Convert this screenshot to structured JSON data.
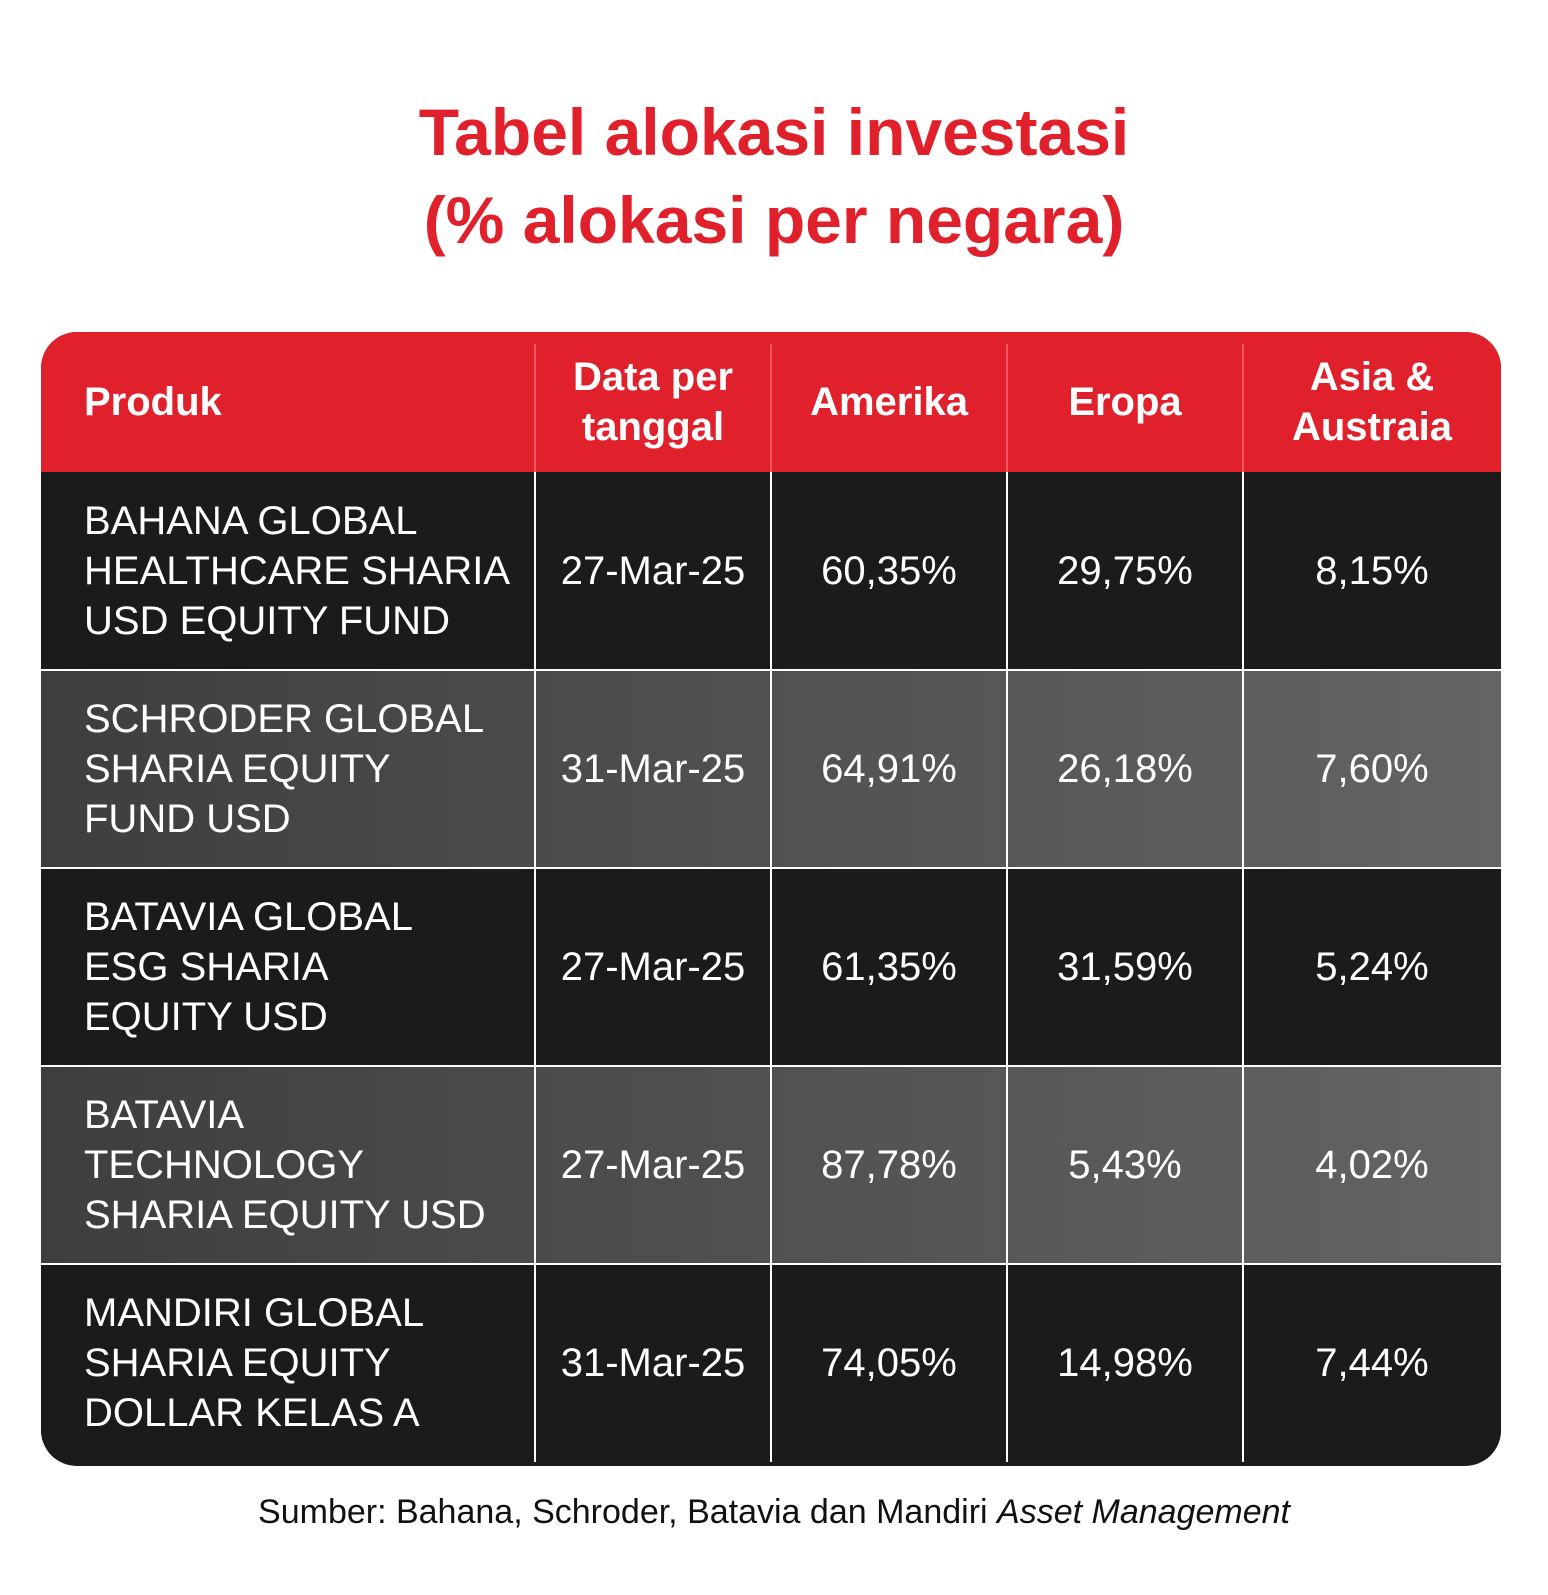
{
  "title_line1": "Tabel alokasi investasi",
  "title_line2": "(% alokasi per negara)",
  "chart_data": {
    "type": "table",
    "columns": [
      "Produk",
      "Data per tanggal",
      "Amerika",
      "Eropa",
      "Asia & Austraia"
    ],
    "header": {
      "produk": "Produk",
      "tanggal_line1": "Data per",
      "tanggal_line2": "tanggal",
      "amerika": "Amerika",
      "eropa": "Eropa",
      "asia_line1": "Asia &",
      "asia_line2": "Austraia"
    },
    "rows": [
      {
        "produk": [
          "BAHANA GLOBAL",
          "HEALTHCARE SHARIA",
          "USD EQUITY FUND"
        ],
        "tanggal": "27-Mar-25",
        "amerika": "60,35%",
        "eropa": "29,75%",
        "asia": "8,15%"
      },
      {
        "produk": [
          "SCHRODER GLOBAL",
          "SHARIA EQUITY",
          "FUND USD"
        ],
        "tanggal": "31-Mar-25",
        "amerika": "64,91%",
        "eropa": "26,18%",
        "asia": "7,60%"
      },
      {
        "produk": [
          "BATAVIA GLOBAL",
          "ESG SHARIA",
          "EQUITY USD"
        ],
        "tanggal": "27-Mar-25",
        "amerika": "61,35%",
        "eropa": "31,59%",
        "asia": "5,24%"
      },
      {
        "produk": [
          "BATAVIA",
          "TECHNOLOGY",
          "SHARIA EQUITY USD"
        ],
        "tanggal": "27-Mar-25",
        "amerika": "87,78%",
        "eropa": "5,43%",
        "asia": "4,02%"
      },
      {
        "produk": [
          "MANDIRI GLOBAL",
          "SHARIA EQUITY",
          "DOLLAR KELAS A"
        ],
        "tanggal": "31-Mar-25",
        "amerika": "74,05%",
        "eropa": "14,98%",
        "asia": "7,44%"
      }
    ]
  },
  "source_prefix": "Sumber: Bahana, Schroder, Batavia dan Mandiri ",
  "source_italic": "Asset Management",
  "colors": {
    "accent": "#e0202b",
    "dark_row": "#1b1b1c",
    "light_row_start": "#3e3e40",
    "light_row_end": "#646464"
  }
}
